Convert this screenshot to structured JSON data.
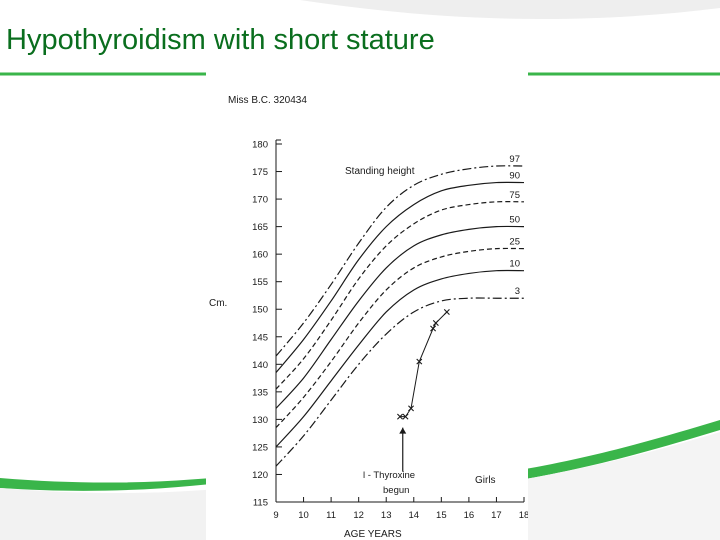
{
  "slide": {
    "title": "Hypothyroidism with short stature"
  },
  "colors": {
    "title": "#0a6e1e",
    "accent_green": "#3ab54a",
    "chart_ink": "#1a1a1a"
  },
  "chart_data": {
    "type": "line",
    "caption": "Miss B.C. 320434",
    "chart_title": "Standing height",
    "xlabel": "AGE  YEARS",
    "ylabel": "Cm.",
    "legend_label": "Girls",
    "xlim": [
      9,
      18
    ],
    "ylim": [
      115,
      180
    ],
    "x_ticks": [
      9,
      10,
      11,
      12,
      13,
      14,
      15,
      16,
      17,
      18
    ],
    "y_ticks": [
      115,
      120,
      125,
      130,
      135,
      140,
      145,
      150,
      155,
      160,
      165,
      170,
      175,
      180
    ],
    "x": [
      9,
      10,
      11,
      12,
      13,
      14,
      15,
      16,
      17,
      18
    ],
    "series": [
      {
        "name": "97",
        "style": "dashdot",
        "values": [
          141.5,
          147.5,
          154.5,
          162.0,
          168.5,
          172.5,
          174.5,
          175.5,
          176.0,
          176.0
        ]
      },
      {
        "name": "90",
        "style": "solid",
        "values": [
          138.5,
          144.5,
          151.5,
          159.0,
          165.0,
          169.0,
          171.5,
          172.5,
          173.0,
          173.0
        ]
      },
      {
        "name": "75",
        "style": "dashed",
        "values": [
          135.5,
          141.0,
          148.0,
          155.5,
          161.5,
          165.5,
          168.0,
          169.0,
          169.5,
          169.5
        ]
      },
      {
        "name": "50",
        "style": "solid",
        "values": [
          132.0,
          137.5,
          144.5,
          151.5,
          157.5,
          161.5,
          163.5,
          164.5,
          165.0,
          165.0
        ]
      },
      {
        "name": "25",
        "style": "dashed",
        "values": [
          128.5,
          134.0,
          140.5,
          147.5,
          153.5,
          157.5,
          159.5,
          160.5,
          161.0,
          161.0
        ]
      },
      {
        "name": "10",
        "style": "solid",
        "values": [
          125.0,
          130.5,
          137.0,
          143.5,
          149.5,
          153.5,
          155.5,
          156.5,
          157.0,
          157.0
        ]
      },
      {
        "name": "3",
        "style": "dashdot",
        "values": [
          121.5,
          127.0,
          133.5,
          140.0,
          145.5,
          149.5,
          151.5,
          152.0,
          152.0,
          152.0
        ]
      }
    ],
    "patient": {
      "points": [
        [
          13.5,
          130.5
        ],
        [
          13.7,
          130.5
        ],
        [
          13.9,
          132.0
        ],
        [
          14.2,
          140.5
        ],
        [
          14.7,
          146.5
        ],
        [
          14.8,
          147.5
        ],
        [
          15.2,
          149.5
        ]
      ]
    },
    "annotation": {
      "text_line1": "l - Thyroxine",
      "text_line2": "begun",
      "x": 13.6
    }
  }
}
